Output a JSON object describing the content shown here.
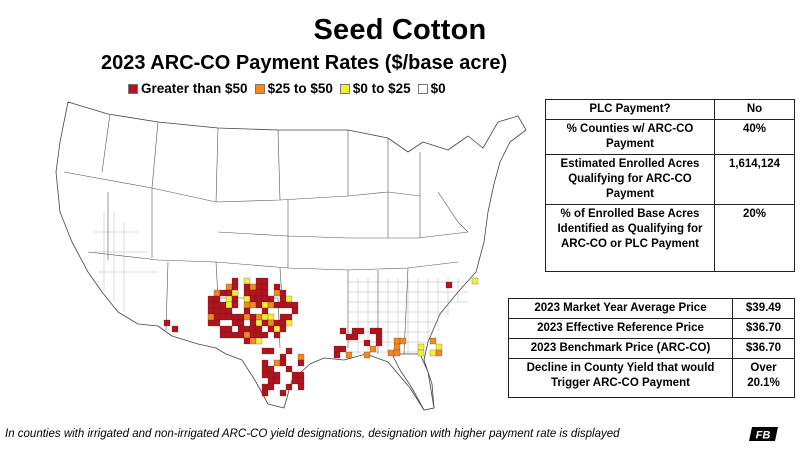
{
  "header": {
    "title": "Seed Cotton",
    "subtitle": "2023 ARC-CO Payment Rates ($/base acre)"
  },
  "legend": [
    {
      "label": "Greater than $50",
      "color": "#b5121b"
    },
    {
      "label": "$25 to $50",
      "color": "#f0891e"
    },
    {
      "label": "$0 to $25",
      "color": "#f5ed3c"
    },
    {
      "label": "$0",
      "color": "#ffffff"
    }
  ],
  "table_top": {
    "rows": [
      {
        "label": "PLC Payment?",
        "value": "No"
      },
      {
        "label": "% Counties w/ ARC-CO Payment",
        "value": "40%"
      },
      {
        "label": "Estimated Enrolled Acres Qualifying for ARC-CO Payment",
        "value": "1,614,124"
      },
      {
        "label": "% of Enrolled Base Acres Identified as Qualifying for ARC-CO or PLC Payment",
        "value": "20%"
      }
    ]
  },
  "table_bottom": {
    "rows": [
      {
        "label": "2023 Market Year Average Price",
        "value": "$39.49"
      },
      {
        "label": "2023 Effective Reference Price",
        "value": "$36.70"
      },
      {
        "label": "2023 Benchmark Price (ARC-CO)",
        "value": "$36.70"
      },
      {
        "label": "Decline in County Yield that would Trigger ARC-CO Payment",
        "value": "Over 20.1%"
      }
    ]
  },
  "footnote": "In counties with irrigated and non-irrigated ARC-CO yield designations, designation with higher payment rate is displayed",
  "logo": {
    "text": "FB"
  },
  "colors": {
    "high": "#b5121b",
    "mid": "#f0891e",
    "low": "#f5ed3c",
    "zero": "#ffffff",
    "outline": "#444444"
  }
}
